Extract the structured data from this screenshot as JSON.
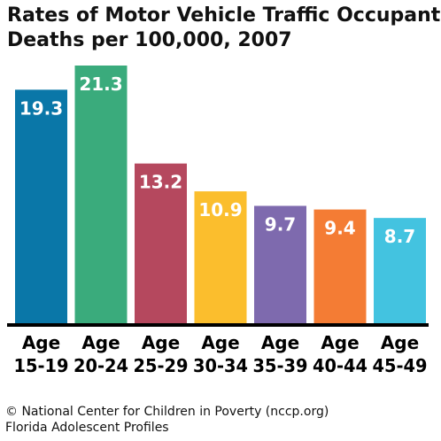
{
  "chart_data": {
    "type": "bar",
    "title_lines": [
      "Rates of Motor Vehicle Traffic Occupant",
      "Deaths per 100,000, 2007"
    ],
    "categories": [
      {
        "line1": "Age",
        "line2": "15-19"
      },
      {
        "line1": "Age",
        "line2": "20-24"
      },
      {
        "line1": "Age",
        "line2": "25-29"
      },
      {
        "line1": "Age",
        "line2": "30-34"
      },
      {
        "line1": "Age",
        "line2": "35-39"
      },
      {
        "line1": "Age",
        "line2": "40-44"
      },
      {
        "line1": "Age",
        "line2": "45-49"
      }
    ],
    "values": [
      19.3,
      21.3,
      13.2,
      10.9,
      9.7,
      9.4,
      8.7
    ],
    "value_labels": [
      "19.3",
      "21.3",
      "13.2",
      "10.9",
      "9.7",
      "9.4",
      "8.7"
    ],
    "colors": [
      "#0a77a8",
      "#3aab7c",
      "#b5485e",
      "#fbbe2d",
      "#7e6aae",
      "#f47c34",
      "#43c3e0"
    ],
    "ylim": [
      0,
      21.3
    ],
    "xlabel": "",
    "ylabel": "",
    "grid": false,
    "legend": "none"
  },
  "footer": {
    "line1": "© National Center for Children in Poverty (nccp.org)",
    "line2": "Florida Adolescent Profiles"
  }
}
